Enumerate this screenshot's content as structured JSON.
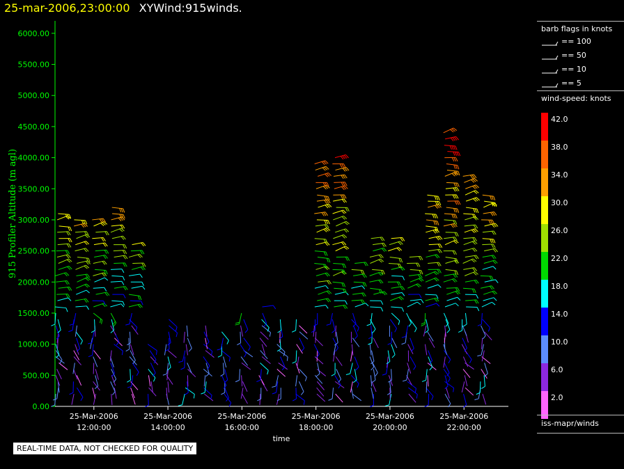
{
  "header": {
    "datetime": "25-mar-2006,23:00:00",
    "product": "XYWind:915winds."
  },
  "chart_data": {
    "type": "wind-barb time-height plot",
    "ylabel": "915 Profiler Altitude (m agl)",
    "xlabel": "time",
    "yticks": [
      "0.00",
      "500.00",
      "1000.00",
      "1500.00",
      "2000.00",
      "2500.00",
      "3000.00",
      "3500.00",
      "4000.00",
      "4500.00",
      "5000.00",
      "5500.00",
      "6000.00"
    ],
    "ylim": [
      0,
      6200
    ],
    "xticks": [
      {
        "date": "25-Mar-2006",
        "time": "12:00:00",
        "hour": 12
      },
      {
        "date": "25-Mar-2006",
        "time": "14:00:00",
        "hour": 14
      },
      {
        "date": "25-Mar-2006",
        "time": "16:00:00",
        "hour": 16
      },
      {
        "date": "25-Mar-2006",
        "time": "18:00:00",
        "hour": 18
      },
      {
        "date": "25-Mar-2006",
        "time": "20:00:00",
        "hour": 20
      },
      {
        "date": "25-Mar-2006",
        "time": "22:00:00",
        "hour": 22
      }
    ],
    "xlim_hours": [
      10.95,
      23.2
    ],
    "profile_hours": [
      11.0,
      11.5,
      12.0,
      12.5,
      13.0,
      13.5,
      14.0,
      14.5,
      15.0,
      15.5,
      16.0,
      16.5,
      17.0,
      17.5,
      18.0,
      18.5,
      19.0,
      19.5,
      20.0,
      20.5,
      21.0,
      21.5,
      22.0,
      22.5
    ],
    "profile_top_m": [
      3100,
      3050,
      3000,
      3250,
      2600,
      1050,
      1400,
      1300,
      1300,
      1250,
      1550,
      1650,
      1400,
      1400,
      3950,
      4000,
      2300,
      2700,
      2700,
      2400,
      3400,
      4400,
      3700,
      3400
    ],
    "barb_flags_title": "barb flags in knots",
    "barb_flags": [
      "== 100",
      "== 50",
      "== 10",
      "== 5"
    ],
    "colorbar_title": "wind-speed: knots",
    "colorbar": [
      {
        "label": "42.0",
        "color": "#ff0000"
      },
      {
        "label": "38.0",
        "color": "#ff6400"
      },
      {
        "label": "34.0",
        "color": "#ffa000"
      },
      {
        "label": "30.0",
        "color": "#ffff00"
      },
      {
        "label": "26.0",
        "color": "#a0e000"
      },
      {
        "label": "22.0",
        "color": "#00d800"
      },
      {
        "label": "18.0",
        "color": "#00ffff"
      },
      {
        "label": "14.0",
        "color": "#0000ff"
      },
      {
        "label": "10.0",
        "color": "#5c8cff"
      },
      {
        "label": "6.0",
        "color": "#8c28e0"
      },
      {
        "label": "2.0",
        "color": "#ff64ff"
      }
    ],
    "source": "iss-mapr/winds"
  },
  "footer": {
    "qc_notice": "REAL-TIME DATA, NOT CHECKED FOR QUALITY"
  },
  "colors": {
    "axis": "#00ff00",
    "title_date": "#ffff00",
    "background": "#000000"
  }
}
